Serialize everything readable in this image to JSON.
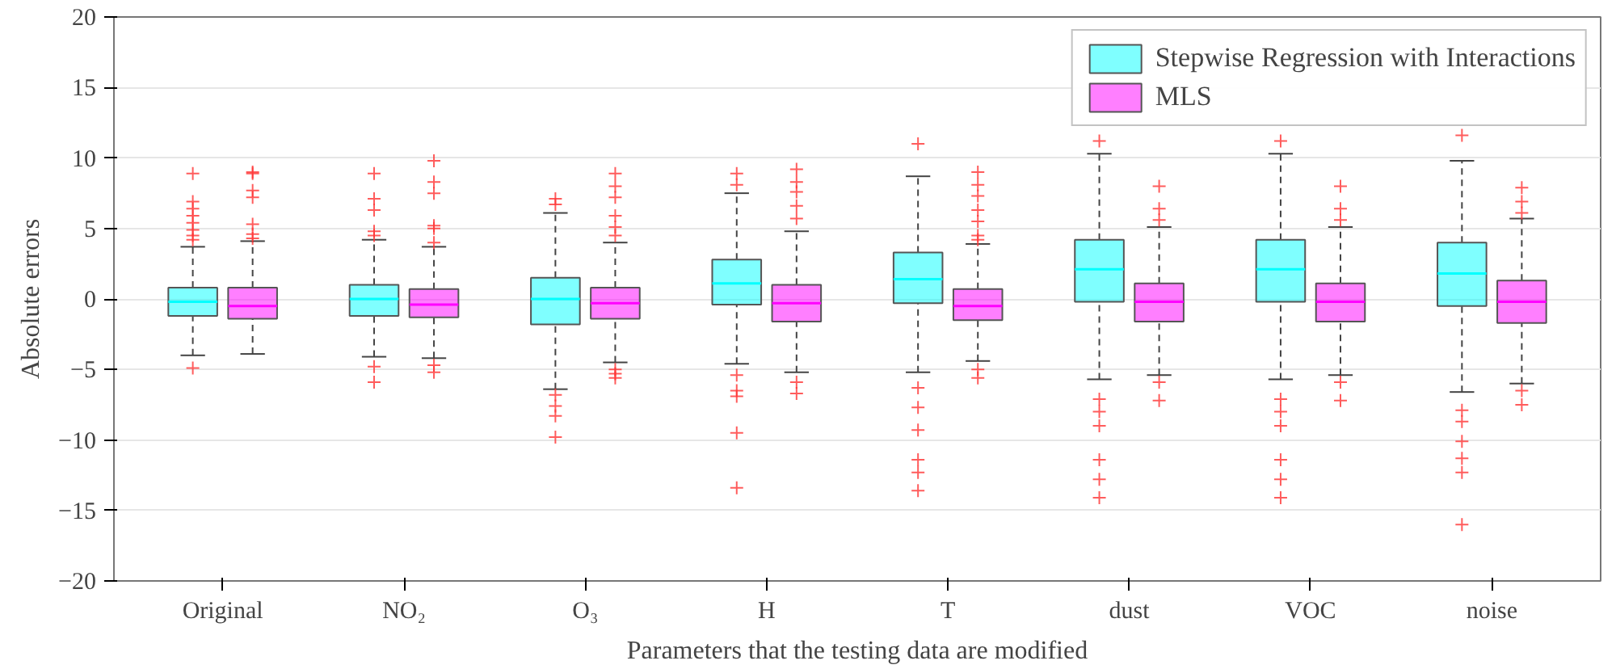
{
  "chart_data": {
    "type": "box",
    "categories": [
      "Original",
      "NO₂",
      "O₃",
      "H",
      "T",
      "dust",
      "VOC",
      "noise"
    ],
    "xlabel": "Parameters that the testing data are modified",
    "ylabel": "Absolute errors",
    "ylim": [
      -20,
      20
    ],
    "yticks": [
      -20,
      -15,
      -10,
      -5,
      0,
      5,
      10,
      15,
      20
    ],
    "grid": "y",
    "legend": "top right",
    "marker": "cross",
    "series": [
      {
        "name": "Stepwise Regression with Interactions",
        "color": "#00ffff",
        "boxes": [
          {
            "low": -4.0,
            "q1": -1.2,
            "median": -0.2,
            "q3": 0.8,
            "high": 3.7,
            "outliers": [
              8.9,
              6.9,
              6.4,
              5.9,
              5.4,
              4.9,
              4.5,
              4.2,
              -4.9
            ]
          },
          {
            "low": -4.1,
            "q1": -1.2,
            "median": 0.0,
            "q3": 1.0,
            "high": 4.2,
            "outliers": [
              8.9,
              7.1,
              6.3,
              4.8,
              4.5,
              -4.8,
              -5.9
            ]
          },
          {
            "low": -6.4,
            "q1": -1.8,
            "median": 0.0,
            "q3": 1.5,
            "high": 6.1,
            "outliers": [
              7.1,
              6.7,
              -6.8,
              -7.6,
              -8.3,
              -9.8
            ]
          },
          {
            "low": -4.6,
            "q1": -0.4,
            "median": 1.1,
            "q3": 2.8,
            "high": 7.5,
            "outliers": [
              8.9,
              8.1,
              -5.4,
              -6.5,
              -6.9,
              -9.5,
              -13.4
            ]
          },
          {
            "low": -5.2,
            "q1": -0.3,
            "median": 1.4,
            "q3": 3.3,
            "high": 8.7,
            "outliers": [
              11.0,
              -6.3,
              -7.7,
              -9.3,
              -11.4,
              -12.3,
              -13.6
            ]
          },
          {
            "low": -5.7,
            "q1": -0.2,
            "median": 2.1,
            "q3": 4.2,
            "high": 10.3,
            "outliers": [
              11.2,
              -7.1,
              -8.0,
              -9.0,
              -11.4,
              -12.8,
              -14.1
            ]
          },
          {
            "low": -5.7,
            "q1": -0.2,
            "median": 2.1,
            "q3": 4.2,
            "high": 10.3,
            "outliers": [
              11.2,
              -7.1,
              -8.0,
              -9.0,
              -11.4,
              -12.8,
              -14.1
            ]
          },
          {
            "low": -6.6,
            "q1": -0.5,
            "median": 1.8,
            "q3": 4.0,
            "high": 9.8,
            "outliers": [
              11.6,
              -7.9,
              -8.7,
              -10.1,
              -11.3,
              -12.3,
              -16.0
            ]
          }
        ]
      },
      {
        "name": "MLS",
        "color": "#ff00ff",
        "boxes": [
          {
            "low": -3.9,
            "q1": -1.4,
            "median": -0.5,
            "q3": 0.8,
            "high": 4.1,
            "outliers": [
              9.0,
              8.9,
              7.7,
              7.2,
              5.3,
              4.6,
              4.3
            ]
          },
          {
            "low": -4.2,
            "q1": -1.3,
            "median": -0.4,
            "q3": 0.7,
            "high": 3.7,
            "outliers": [
              9.8,
              8.3,
              7.5,
              5.2,
              5.0,
              4.0,
              -4.7,
              -5.2
            ]
          },
          {
            "low": -4.5,
            "q1": -1.4,
            "median": -0.3,
            "q3": 0.8,
            "high": 4.0,
            "outliers": [
              8.9,
              8.0,
              7.2,
              5.9,
              5.1,
              4.5,
              -5.0,
              -5.3,
              -5.6
            ]
          },
          {
            "low": -5.2,
            "q1": -1.6,
            "median": -0.3,
            "q3": 1.0,
            "high": 4.8,
            "outliers": [
              9.2,
              8.3,
              7.6,
              6.6,
              5.7,
              -5.9,
              -6.7
            ]
          },
          {
            "low": -4.4,
            "q1": -1.5,
            "median": -0.5,
            "q3": 0.7,
            "high": 3.9,
            "outliers": [
              9.0,
              8.1,
              7.3,
              6.3,
              5.5,
              4.5,
              4.2,
              -5.0,
              -5.6
            ]
          },
          {
            "low": -5.4,
            "q1": -1.6,
            "median": -0.2,
            "q3": 1.1,
            "high": 5.1,
            "outliers": [
              8.0,
              6.4,
              5.6,
              -5.9,
              -7.2
            ]
          },
          {
            "low": -5.4,
            "q1": -1.6,
            "median": -0.2,
            "q3": 1.1,
            "high": 5.1,
            "outliers": [
              8.0,
              6.4,
              5.6,
              -5.9,
              -7.2
            ]
          },
          {
            "low": -6.0,
            "q1": -1.7,
            "median": -0.2,
            "q3": 1.3,
            "high": 5.7,
            "outliers": [
              7.9,
              6.9,
              6.1,
              -6.5,
              -7.5
            ]
          }
        ]
      }
    ]
  }
}
